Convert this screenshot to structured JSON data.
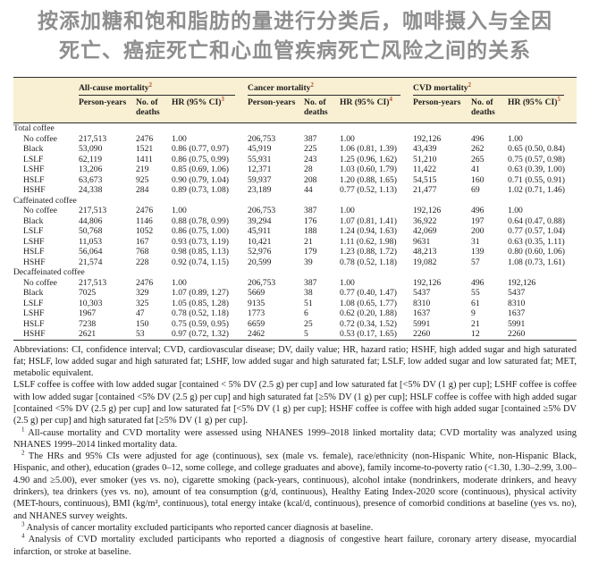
{
  "title": {
    "line1": "按添加糖和饱和脂肪的量进行分类后，咖啡摄入与全因",
    "line2": "死亡、癌症死亡和心血管疾病死亡风险之间的关系"
  },
  "colors": {
    "header_background": "#f9efd2",
    "superscript_accent": "#b84a2b",
    "title_color": "#8e8e8e",
    "rule_color": "#2b2b2b",
    "text_color": "#1c1c1c"
  },
  "table": {
    "groups": [
      {
        "label": "All-cause mortality",
        "sup": "2"
      },
      {
        "label": "Cancer mortality",
        "sup": "2"
      },
      {
        "label": "CVD mortality",
        "sup": "2"
      }
    ],
    "columns": [
      {
        "label": "Person-years",
        "sup": ""
      },
      {
        "label": "No. of deaths",
        "sup": ""
      },
      {
        "label": "HR (95% CI)",
        "sup": "3"
      },
      {
        "label": "Person-years",
        "sup": ""
      },
      {
        "label": "No. of deaths",
        "sup": ""
      },
      {
        "label": "HR (95% CI)",
        "sup": "4"
      },
      {
        "label": "Person-years",
        "sup": ""
      },
      {
        "label": "No. of deaths",
        "sup": ""
      },
      {
        "label": "HR (95% CI)",
        "sup": "5"
      }
    ],
    "sections": [
      {
        "label": "Total coffee",
        "rows": [
          {
            "label": "No coffee",
            "cells": [
              "217,513",
              "2476",
              "1.00",
              "206,753",
              "387",
              "1.00",
              "192,126",
              "496",
              "1.00"
            ]
          },
          {
            "label": "Black",
            "cells": [
              "53,090",
              "1521",
              "0.86 (0.77, 0.97)",
              "45,919",
              "225",
              "1.06 (0.81, 1.39)",
              "43,439",
              "262",
              "0.65 (0.50, 0.84)"
            ]
          },
          {
            "label": "LSLF",
            "cells": [
              "62,119",
              "1411",
              "0.86 (0.75, 0.99)",
              "55,931",
              "243",
              "1.25 (0.96, 1.62)",
              "51,210",
              "265",
              "0.75 (0.57, 0.98)"
            ]
          },
          {
            "label": "LSHF",
            "cells": [
              "13,206",
              "219",
              "0.85 (0.69, 1.06)",
              "12,371",
              "28",
              "1.03 (0.60, 1.79)",
              "11,422",
              "41",
              "0.63 (0.39, 1.00)"
            ]
          },
          {
            "label": "HSLF",
            "cells": [
              "63,673",
              "925",
              "0.90 (0.79, 1.04)",
              "59,937",
              "208",
              "1.20 (0.88, 1.65)",
              "54,515",
              "160",
              "0.71 (0.55, 0.91)"
            ]
          },
          {
            "label": "HSHF",
            "cells": [
              "24,338",
              "284",
              "0.89 (0.73, 1.08)",
              "23,189",
              "44",
              "0.77 (0.52, 1.13)",
              "21,477",
              "69",
              "1.02 (0.71, 1.46)"
            ]
          }
        ]
      },
      {
        "label": "Caffeinated coffee",
        "rows": [
          {
            "label": "No coffee",
            "cells": [
              "217,513",
              "2476",
              "1.00",
              "206,753",
              "387",
              "1.00",
              "192,126",
              "496",
              "1.00"
            ]
          },
          {
            "label": "Black",
            "cells": [
              "44,806",
              "1146",
              "0.88 (0.78, 0.99)",
              "39,294",
              "176",
              "1.07 (0.81, 1.41)",
              "36,922",
              "197",
              "0.64 (0.47, 0.88)"
            ]
          },
          {
            "label": "LSLF",
            "cells": [
              "50,768",
              "1052",
              "0.86 (0.75, 1.00)",
              "45,911",
              "188",
              "1.24 (0.94, 1.63)",
              "42,069",
              "200",
              "0.77 (0.57, 1.04)"
            ]
          },
          {
            "label": "LSHF",
            "cells": [
              "11,053",
              "167",
              "0.93 (0.73, 1.19)",
              "10,421",
              "21",
              "1.11 (0.62, 1.98)",
              "9631",
              "31",
              "0.63 (0.35, 1.11)"
            ]
          },
          {
            "label": "HSLF",
            "cells": [
              "56,064",
              "768",
              "0.98 (0.85, 1.13)",
              "52,976",
              "179",
              "1.23 (0.88, 1.72)",
              "48,213",
              "139",
              "0.80 (0.60, 1.06)"
            ]
          },
          {
            "label": "HSHF",
            "cells": [
              "21,574",
              "228",
              "0.92 (0.74, 1.15)",
              "20,599",
              "39",
              "0.78 (0.52, 1.18)",
              "19,082",
              "57",
              "1.08 (0.73, 1.61)"
            ]
          }
        ]
      },
      {
        "label": "Decaffeinated coffee",
        "rows": [
          {
            "label": "No coffee",
            "cells": [
              "217,513",
              "2476",
              "1.00",
              "206,753",
              "387",
              "1.00",
              "192,126",
              "496",
              "192,126"
            ]
          },
          {
            "label": "Black",
            "cells": [
              "7025",
              "329",
              "1.07 (0.89, 1.27)",
              "5669",
              "38",
              "0.77 (0.40, 1.47)",
              "5437",
              "55",
              "5437"
            ]
          },
          {
            "label": "LSLF",
            "cells": [
              "10,303",
              "325",
              "1.05 (0.85, 1.28)",
              "9135",
              "51",
              "1.08 (0.65, 1.77)",
              "8310",
              "61",
              "8310"
            ]
          },
          {
            "label": "LSHF",
            "cells": [
              "1967",
              "47",
              "0.78 (0.52, 1.18)",
              "1773",
              "6",
              "0.62 (0.20, 1.88)",
              "1637",
              "9",
              "1637"
            ]
          },
          {
            "label": "HSLF",
            "cells": [
              "7238",
              "150",
              "0.75 (0.59, 0.95)",
              "6659",
              "25",
              "0.72 (0.34, 1.52)",
              "5991",
              "21",
              "5991"
            ]
          },
          {
            "label": "HSHF",
            "cells": [
              "2621",
              "53",
              "0.97 (0.72, 1.32)",
              "2462",
              "5",
              "0.53 (0.17, 1.65)",
              "2260",
              "12",
              "2260"
            ]
          }
        ]
      }
    ]
  },
  "notes": {
    "abbreviations": "Abbreviations: CI, confidence interval; CVD, cardiovascular disease; DV, daily value; HR, hazard ratio; HSHF, high added sugar and high saturated fat; HSLF, low added sugar and high saturated fat; LSHF, low added sugar and high saturated fat; LSLF, low added sugar and low saturated fat; MET, metabolic equivalent.",
    "definitions": "LSLF coffee is coffee with low added sugar [contained < 5% DV (2.5 g) per cup] and low saturated fat [<5% DV (1 g) per cup]; LSHF coffee is coffee with low added sugar [contained <5% DV (2.5 g) per cup] and high saturated fat [≥5% DV (1 g) per cup]; HSLF coffee is coffee with high added sugar [contained <5% DV (2.5 g) per cup] and low saturated fat [<5% DV (1 g) per cup]; HSHF coffee is coffee with high added sugar [contained ≥5% DV (2.5 g) per cup] and high saturated fat [≥5% DV (1 g) per cup].",
    "footnotes": [
      {
        "marker": "1",
        "text": " All-cause mortality and CVD mortality were assessed using NHANES 1999–2018 linked mortality data; CVD mortality was analyzed using NHANES 1999–2014 linked mortality data."
      },
      {
        "marker": "2",
        "text": " The HRs and 95% CIs were adjusted for age (continuous), sex (male vs. female), race/ethnicity (non-Hispanic White, non-Hispanic Black, Hispanic, and other), education (grades 0–12, some college, and college graduates and above), family income-to-poverty ratio (<1.30, 1.30–2.99, 3.00–4.90 and ≥5.00), ever smoker (yes vs. no), cigarette smoking (pack-years, continuous), alcohol intake (nondrinkers, moderate drinkers, and heavy drinkers), tea drinkers (yes vs. no), amount of tea consumption (g/d, continuous), Healthy Eating Index-2020 score (continuous), physical activity (MET-hours, continuous), BMI (kg/m², continuous), total energy intake (kcal/d, continuous), presence of comorbid conditions at baseline (yes vs. no), and NHANES survey weights."
      },
      {
        "marker": "3",
        "text": " Analysis of cancer mortality excluded participants who reported cancer diagnosis at baseline."
      },
      {
        "marker": "4",
        "text": " Analysis of CVD mortality excluded participants who reported a diagnosis of congestive heart failure, coronary artery disease, myocardial infarction, or stroke at baseline."
      }
    ]
  }
}
